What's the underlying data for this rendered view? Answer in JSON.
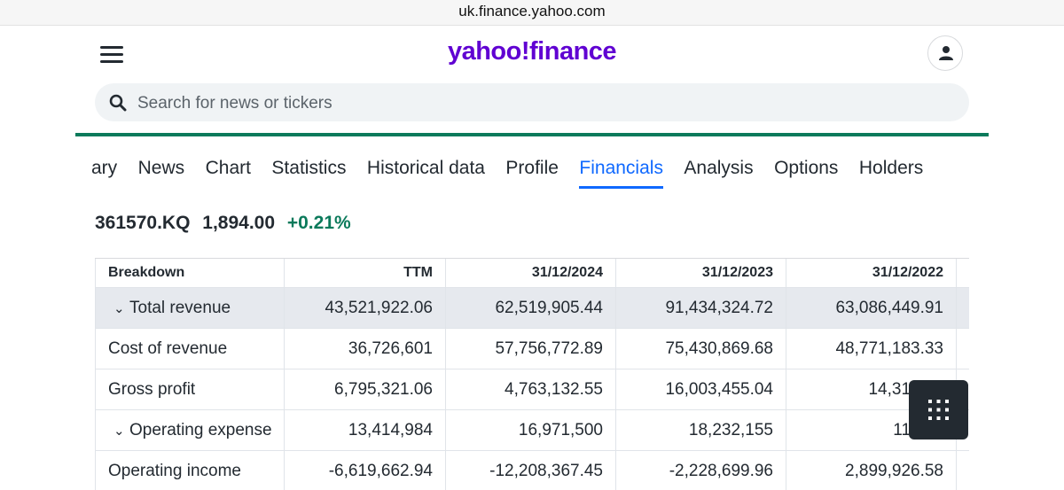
{
  "browser": {
    "url": "uk.finance.yahoo.com"
  },
  "header": {
    "logo": "yahoo!finance"
  },
  "search": {
    "placeholder": "Search for news or tickers"
  },
  "tabs": [
    {
      "label": "ary"
    },
    {
      "label": "News"
    },
    {
      "label": "Chart"
    },
    {
      "label": "Statistics"
    },
    {
      "label": "Historical data"
    },
    {
      "label": "Profile"
    },
    {
      "label": "Financials",
      "active": true
    },
    {
      "label": "Analysis"
    },
    {
      "label": "Options"
    },
    {
      "label": "Holders"
    }
  ],
  "quote": {
    "ticker": "361570.KQ",
    "price": "1,894.00",
    "change": "+0.21%"
  },
  "financials": {
    "headers": [
      "Breakdown",
      "TTM",
      "31/12/2024",
      "31/12/2023",
      "31/12/2022"
    ],
    "rows": [
      {
        "label": "Total revenue",
        "expandable": true,
        "values": [
          "43,521,922.06",
          "62,519,905.44",
          "91,434,324.72",
          "63,086,449.91"
        ]
      },
      {
        "label": "Cost of revenue",
        "expandable": false,
        "values": [
          "36,726,601",
          "57,756,772.89",
          "75,430,869.68",
          "48,771,183.33"
        ]
      },
      {
        "label": "Gross profit",
        "expandable": false,
        "values": [
          "6,795,321.06",
          "4,763,132.55",
          "16,003,455.04",
          "14,315,26"
        ]
      },
      {
        "label": "Operating expense",
        "expandable": true,
        "values": [
          "13,414,984",
          "16,971,500",
          "18,232,155",
          "11,415"
        ]
      },
      {
        "label": "Operating income",
        "expandable": false,
        "values": [
          "-6,619,662.94",
          "-12,208,367.45",
          "-2,228,699.96",
          "2,899,926.58"
        ]
      }
    ]
  },
  "icons": {
    "menu": "hamburger-menu-icon",
    "profile": "user-icon",
    "search": "search-icon",
    "expand": "chevron-down-icon",
    "grid": "grid-dots-icon"
  },
  "colors": {
    "brand": "#6001d2",
    "accent": "#0f69ff",
    "positive": "#0b7a5b",
    "row_highlight": "#e6e9ee"
  }
}
